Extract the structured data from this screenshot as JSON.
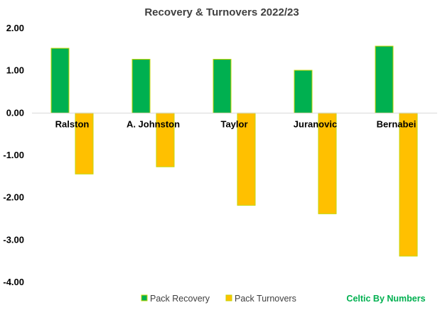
{
  "chart_data": {
    "type": "bar",
    "title": "Recovery & Turnovers 2022/23",
    "categories": [
      "Ralston",
      "A. Johnston",
      "Taylor",
      "Juranovic",
      "Bernabei"
    ],
    "series": [
      {
        "name": "Pack Recovery",
        "color": "#00b050",
        "values": [
          1.53,
          1.27,
          1.27,
          1.01,
          1.58
        ]
      },
      {
        "name": "Pack Turnovers",
        "color": "#ffc000",
        "values": [
          -1.44,
          -1.27,
          -2.18,
          -2.38,
          -3.38
        ]
      }
    ],
    "ylim": [
      -4.0,
      2.0
    ],
    "yticks": [
      "2.00",
      "1.00",
      "0.00",
      "-1.00",
      "-2.00",
      "-3.00",
      "-4.00"
    ],
    "ytick_values": [
      2,
      1,
      0,
      -1,
      -2,
      -3,
      -4
    ],
    "xlabel": "",
    "ylabel": "",
    "legend": "bottom",
    "grid": false,
    "bar_border_color": "#c4d600"
  },
  "watermark": {
    "text": "Celtic By Numbers",
    "color": "#00b050"
  }
}
